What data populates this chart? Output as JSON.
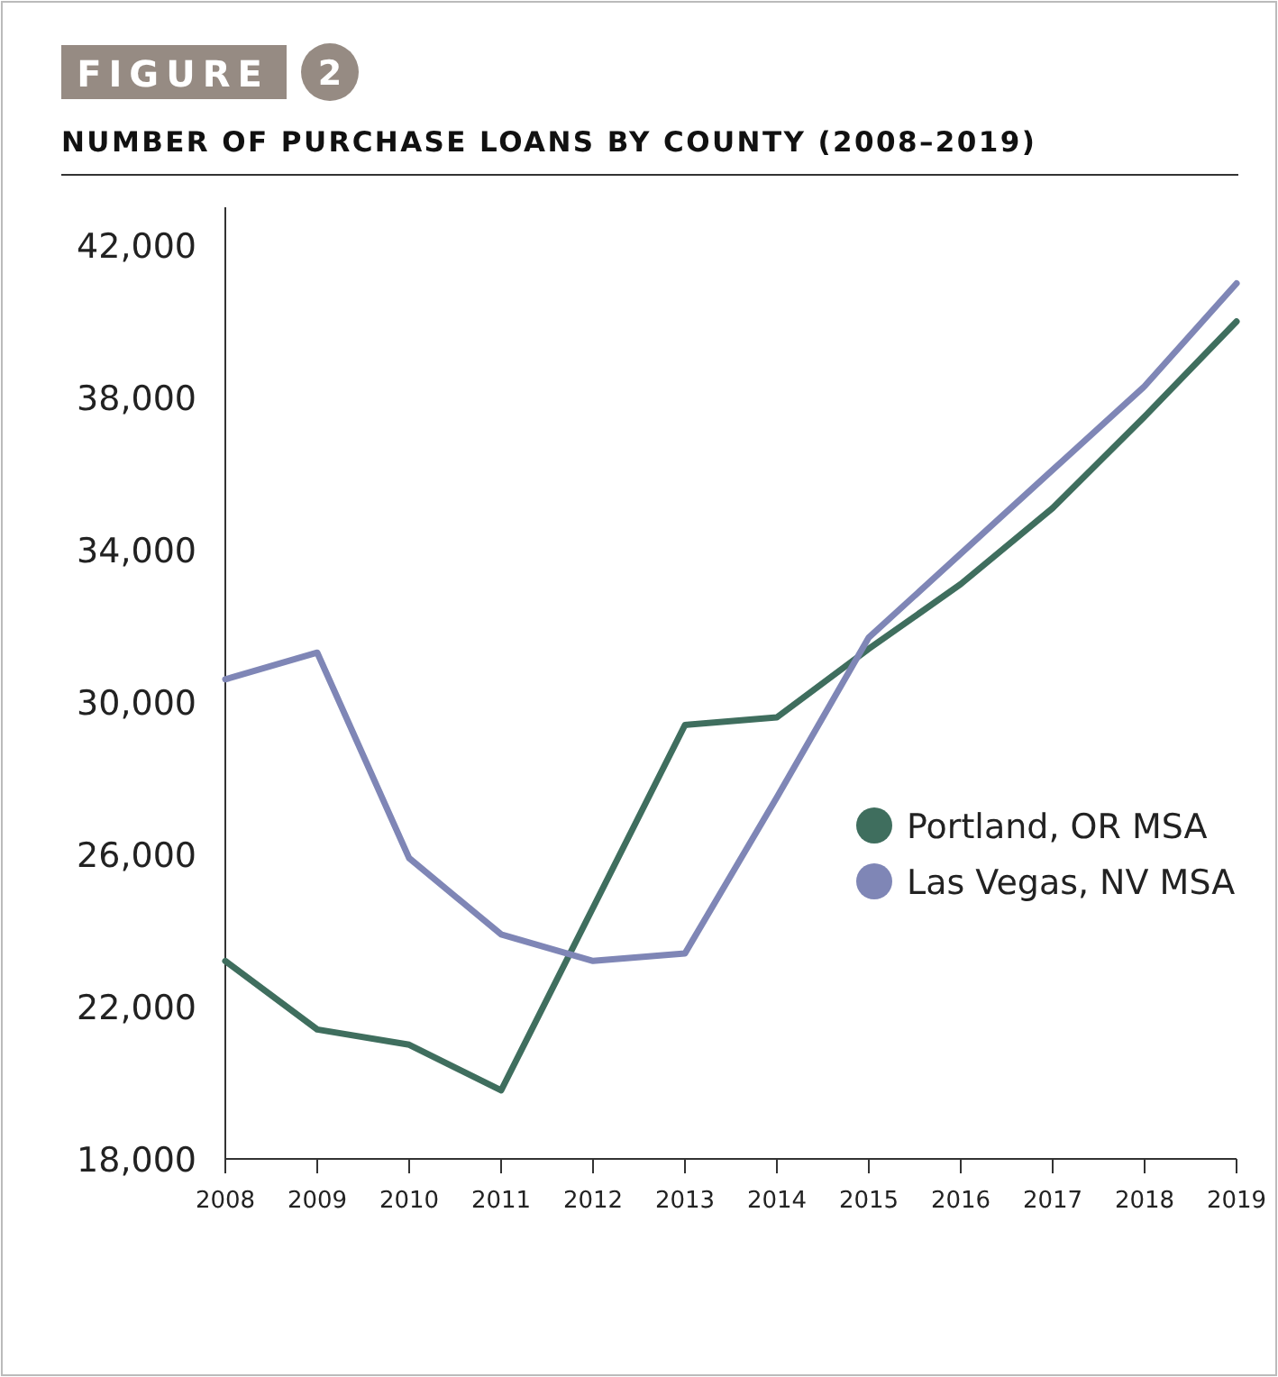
{
  "chart_data": {
    "type": "line",
    "title": "NUMBER OF PURCHASE LOANS BY COUNTY (2008–2019)",
    "annotations": [
      "FIGURE",
      "2"
    ],
    "x": [
      2008,
      2009,
      2010,
      2011,
      2012,
      2013,
      2014,
      2015,
      2016,
      2017,
      2018,
      2019
    ],
    "series": [
      {
        "name": "Portland, OR MSA",
        "color": "#3f6e5e",
        "values": [
          23200,
          21400,
          21000,
          19800,
          24600,
          29400,
          29600,
          31400,
          33100,
          35100,
          37500,
          40000
        ]
      },
      {
        "name": "Las Vegas, NV MSA",
        "color": "#7f86b6",
        "values": [
          30600,
          31300,
          25900,
          23900,
          23200,
          23400,
          27500,
          31700,
          33900,
          36100,
          38300,
          41000
        ]
      }
    ],
    "xlim": [
      2008,
      2019
    ],
    "xticks": [
      2008,
      2009,
      2010,
      2011,
      2012,
      2013,
      2014,
      2015,
      2016,
      2017,
      2018,
      2019
    ],
    "ylim": [
      18000,
      43000
    ],
    "yticks": [
      {
        "value": 18000,
        "label": "18,000"
      },
      {
        "value": 22000,
        "label": "22,000"
      },
      {
        "value": 26000,
        "label": "26,000"
      },
      {
        "value": 30000,
        "label": "30,000"
      },
      {
        "value": 34000,
        "label": "34,000"
      },
      {
        "value": 38000,
        "label": "38,000"
      },
      {
        "value": 42000,
        "label": "42,000"
      }
    ],
    "legend": "right",
    "line_style": "solid",
    "grid": false
  }
}
